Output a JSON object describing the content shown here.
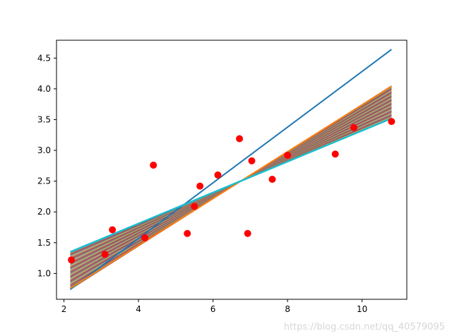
{
  "chart_data": {
    "type": "scatter",
    "title": "",
    "xlabel": "",
    "ylabel": "",
    "xlim": [
      1.8,
      11.2
    ],
    "ylim": [
      0.58,
      4.79
    ],
    "xticks": [
      2,
      4,
      6,
      8,
      10
    ],
    "yticks": [
      1.0,
      1.5,
      2.0,
      2.5,
      3.0,
      3.5,
      4.0,
      4.5
    ],
    "xtick_labels": [
      "2",
      "4",
      "6",
      "8",
      "10"
    ],
    "ytick_labels": [
      "1.0",
      "1.5",
      "2.0",
      "2.5",
      "3.0",
      "3.5",
      "4.0",
      "4.5"
    ],
    "grid": false,
    "points": {
      "color": "#ff0000",
      "x": [
        2.2,
        3.1,
        3.3,
        4.17,
        4.4,
        5.31,
        5.5,
        5.65,
        6.13,
        6.71,
        6.93,
        7.04,
        7.59,
        8.0,
        9.28,
        9.78,
        10.79
      ],
      "y": [
        1.22,
        1.31,
        1.71,
        1.58,
        2.76,
        1.65,
        2.09,
        2.42,
        2.6,
        3.19,
        1.65,
        2.83,
        2.53,
        2.92,
        2.94,
        3.37,
        3.47
      ]
    },
    "fit_lines": {
      "x": [
        2.17,
        10.79
      ],
      "pivot": [
        6.83,
        2.53
      ],
      "first": {
        "color": "#1f77b4",
        "y": [
          0.74,
          4.64
        ]
      },
      "second": {
        "color": "#ff7f0e",
        "y": [
          0.76,
          4.04
        ]
      },
      "band": {
        "count": 60,
        "y_low_start": 0.74,
        "y_high_start": 1.35,
        "y_high_end": 3.52,
        "y_low_end": 3.97,
        "colors": [
          "#8c564b",
          "#7f7f7f",
          "#bcbd22",
          "#e377c2",
          "#2ca02c",
          "#9467bd",
          "#d62728"
        ]
      },
      "final": {
        "color": "#17becf",
        "y": [
          1.35,
          3.52
        ]
      }
    }
  },
  "watermark": "https://blog.csdn.net/qq_40579095"
}
